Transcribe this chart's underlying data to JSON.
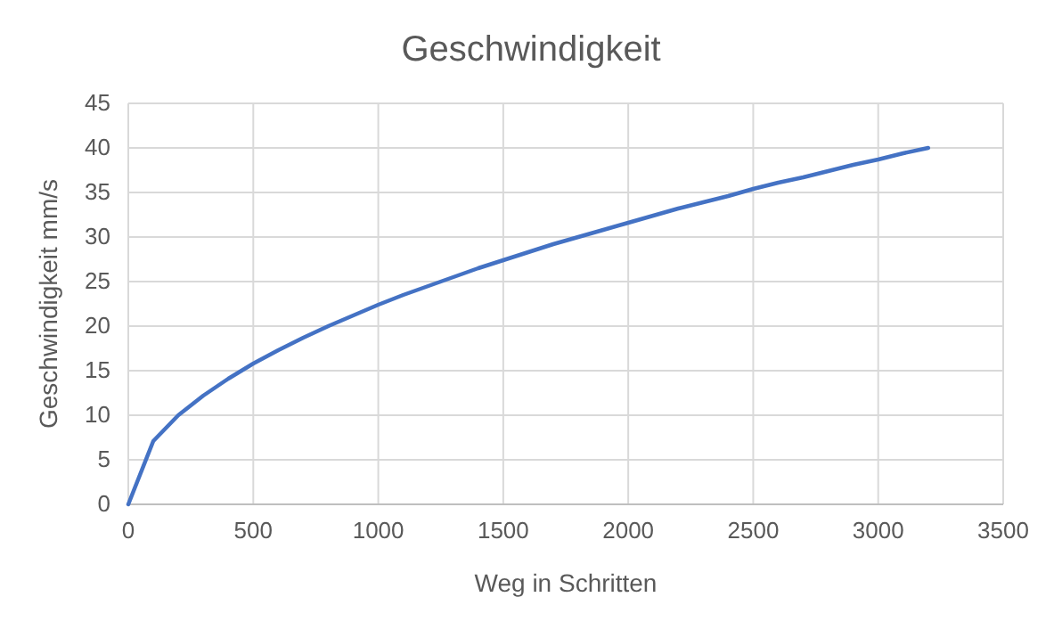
{
  "chart_data": {
    "type": "line",
    "title": "Geschwindigkeit",
    "xlabel": "Weg in Schritten",
    "ylabel": "Geschwindigkeit mm/s",
    "x": [
      0,
      100,
      200,
      300,
      400,
      500,
      600,
      700,
      800,
      900,
      1000,
      1100,
      1200,
      1300,
      1400,
      1500,
      1600,
      1700,
      1800,
      1900,
      2000,
      2100,
      2200,
      2300,
      2400,
      2500,
      2600,
      2700,
      2800,
      2900,
      3000,
      3100,
      3200
    ],
    "series": [
      {
        "color": "#4472c4",
        "values": [
          0,
          7.1,
          10.0,
          12.2,
          14.1,
          15.8,
          17.3,
          18.7,
          20.0,
          21.2,
          22.4,
          23.5,
          24.5,
          25.5,
          26.5,
          27.4,
          28.3,
          29.2,
          30.0,
          30.8,
          31.6,
          32.4,
          33.2,
          33.9,
          34.6,
          35.4,
          36.1,
          36.7,
          37.4,
          38.1,
          38.7,
          39.4,
          40.0
        ]
      }
    ],
    "xlim": [
      0,
      3500
    ],
    "xticks": [
      0,
      500,
      1000,
      1500,
      2000,
      2500,
      3000,
      3500
    ],
    "ylim": [
      0,
      45
    ],
    "yticks": [
      0,
      5,
      10,
      15,
      20,
      25,
      30,
      35,
      40,
      45
    ],
    "grid": true,
    "marker": "none",
    "line_style": "solid"
  }
}
